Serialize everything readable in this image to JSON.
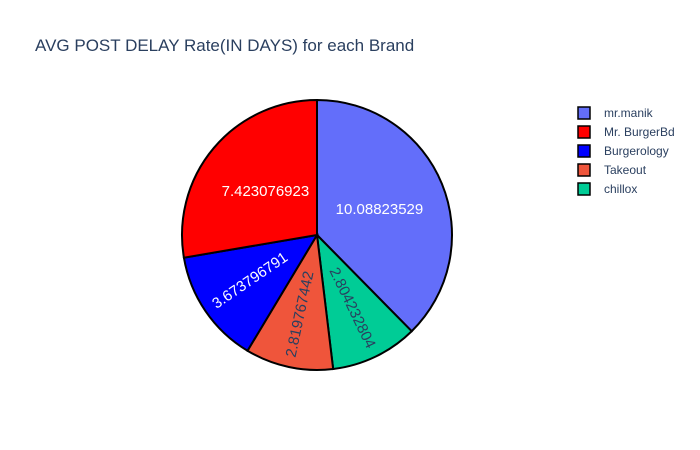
{
  "chart_data": {
    "type": "pie",
    "title": "AVG POST DELAY Rate(IN DAYS) for each Brand",
    "legend_position": "top-right",
    "slices": [
      {
        "label": "mr.manik",
        "value": 10.08823529,
        "text": "10.08823529",
        "color": "#636efa",
        "text_color": "#ffffff"
      },
      {
        "label": "chillox",
        "value": 2.804232804,
        "text": "2.804232804",
        "color": "#00cc96",
        "text_color": "#2a3f5f"
      },
      {
        "label": "Takeout",
        "value": 2.819767442,
        "text": "2.819767442",
        "color": "#ef553b",
        "text_color": "#2a3f5f"
      },
      {
        "label": "Burgerology",
        "value": 3.673796791,
        "text": "3.673796791",
        "color": "#0000ff",
        "text_color": "#ffffff"
      },
      {
        "label": "Mr. BurgerBd",
        "value": 7.423076923,
        "text": "7.423076923",
        "color": "#ff0000",
        "text_color": "#ffffff"
      }
    ],
    "legend_entries": [
      {
        "label": "mr.manik",
        "color": "#636efa"
      },
      {
        "label": "Mr. BurgerBd",
        "color": "#ff0000"
      },
      {
        "label": "Burgerology",
        "color": "#0000ff"
      },
      {
        "label": "Takeout",
        "color": "#ef553b"
      },
      {
        "label": "chillox",
        "color": "#00cc96"
      }
    ]
  }
}
